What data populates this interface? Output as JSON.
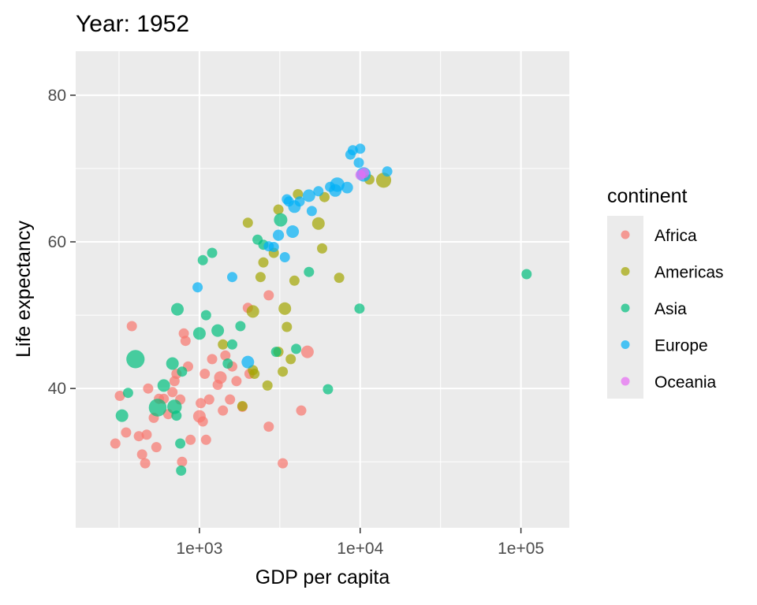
{
  "chart_data": {
    "type": "scatter",
    "title": "Year: 1952",
    "xlabel": "GDP per capita",
    "ylabel": "Life expectancy",
    "x_scale": "log10",
    "xlim": [
      170,
      200000
    ],
    "ylim": [
      21,
      86
    ],
    "x_ticks": [
      1000,
      10000,
      100000
    ],
    "x_tick_labels": [
      "1e+03",
      "1e+04",
      "1e+05"
    ],
    "y_ticks": [
      40,
      60,
      80
    ],
    "y_tick_labels": [
      "40",
      "60",
      "80"
    ],
    "grid": true,
    "legend": {
      "title": "continent",
      "placement": "right",
      "entries": [
        "Africa",
        "Americas",
        "Asia",
        "Europe",
        "Oceania"
      ]
    },
    "colors": {
      "Africa": "#F8766D",
      "Americas": "#A3A500",
      "Asia": "#00BF7D",
      "Europe": "#00B0F6",
      "Oceania": "#E76BF3"
    },
    "point_alpha": 0.7,
    "series": [
      {
        "name": "Africa",
        "points": [
          [
            300,
            32.5,
            1
          ],
          [
            320,
            39,
            1
          ],
          [
            350,
            34,
            1
          ],
          [
            380,
            48.5,
            1
          ],
          [
            420,
            33.5,
            1
          ],
          [
            440,
            31,
            1
          ],
          [
            460,
            29.8,
            1
          ],
          [
            470,
            33.7,
            1
          ],
          [
            480,
            40,
            1
          ],
          [
            520,
            36,
            1
          ],
          [
            540,
            32,
            1
          ],
          [
            560,
            38.6,
            1
          ],
          [
            600,
            38.6,
            1
          ],
          [
            640,
            36.5,
            1
          ],
          [
            680,
            39.5,
            1
          ],
          [
            700,
            41,
            1
          ],
          [
            720,
            42,
            1
          ],
          [
            760,
            38.5,
            1
          ],
          [
            780,
            30,
            1
          ],
          [
            800,
            47.5,
            1
          ],
          [
            820,
            46.5,
            1
          ],
          [
            850,
            43,
            1
          ],
          [
            880,
            33,
            1
          ],
          [
            1000,
            36.2,
            1.5
          ],
          [
            1020,
            38,
            1
          ],
          [
            1050,
            35.5,
            1
          ],
          [
            1080,
            42,
            1
          ],
          [
            1100,
            33,
            1
          ],
          [
            1150,
            38.5,
            1
          ],
          [
            1200,
            44,
            1
          ],
          [
            1300,
            40.5,
            1
          ],
          [
            1350,
            41.5,
            1.5
          ],
          [
            1400,
            37,
            1
          ],
          [
            1450,
            44.5,
            1
          ],
          [
            1550,
            38.5,
            1
          ],
          [
            1600,
            43,
            1
          ],
          [
            1700,
            41,
            1
          ],
          [
            1850,
            37.5,
            1
          ],
          [
            2000,
            51,
            1
          ],
          [
            2050,
            42,
            1
          ],
          [
            2700,
            34.8,
            1
          ],
          [
            2700,
            52.7,
            1
          ],
          [
            3300,
            29.8,
            1
          ],
          [
            4300,
            37,
            1
          ],
          [
            4700,
            45,
            1.5
          ]
        ]
      },
      {
        "name": "Americas",
        "points": [
          [
            1400,
            46,
            1
          ],
          [
            1850,
            37.6,
            1
          ],
          [
            2000,
            62.6,
            1
          ],
          [
            2150,
            42.5,
            1
          ],
          [
            2150,
            50.5,
            1.5
          ],
          [
            2200,
            42,
            1
          ],
          [
            2400,
            55.2,
            1
          ],
          [
            2500,
            57.2,
            1
          ],
          [
            2650,
            40.4,
            1
          ],
          [
            2900,
            58.5,
            1
          ],
          [
            3100,
            64.4,
            1
          ],
          [
            3100,
            45,
            1
          ],
          [
            3300,
            42.3,
            1
          ],
          [
            3400,
            50.9,
            1.5
          ],
          [
            3500,
            48.4,
            1
          ],
          [
            3700,
            44,
            1
          ],
          [
            3900,
            54.7,
            1
          ],
          [
            4100,
            66.5,
            1
          ],
          [
            5500,
            62.5,
            1.5
          ],
          [
            5800,
            59.1,
            1
          ],
          [
            6000,
            66.1,
            1
          ],
          [
            7400,
            55.1,
            1
          ],
          [
            11400,
            68.5,
            1
          ],
          [
            13990,
            68.4,
            2.2
          ]
        ]
      },
      {
        "name": "Asia",
        "points": [
          [
            330,
            36.3,
            1.5
          ],
          [
            360,
            39.4,
            1
          ],
          [
            400,
            44,
            3.2
          ],
          [
            550,
            37.4,
            3
          ],
          [
            600,
            40.4,
            1.5
          ],
          [
            680,
            43.4,
            1.5
          ],
          [
            700,
            37.5,
            2
          ],
          [
            720,
            36.3,
            1
          ],
          [
            730,
            50.8,
            1.5
          ],
          [
            760,
            32.5,
            1
          ],
          [
            770,
            28.8,
            1
          ],
          [
            780,
            42.3,
            1
          ],
          [
            1000,
            47.5,
            1.5
          ],
          [
            1050,
            57.5,
            1
          ],
          [
            1100,
            50,
            1
          ],
          [
            1200,
            58.5,
            1
          ],
          [
            1300,
            47.9,
            1.5
          ],
          [
            1500,
            43.4,
            1
          ],
          [
            1600,
            46,
            1
          ],
          [
            1800,
            48.5,
            1
          ],
          [
            2300,
            60.3,
            1
          ],
          [
            2500,
            59.6,
            1
          ],
          [
            3000,
            45,
            1
          ],
          [
            3200,
            63,
            1.7
          ],
          [
            4000,
            45.4,
            1
          ],
          [
            4800,
            55.9,
            1
          ],
          [
            6300,
            39.9,
            1
          ],
          [
            9900,
            50.9,
            1
          ],
          [
            108382,
            55.6,
            1
          ]
        ]
      },
      {
        "name": "Europe",
        "points": [
          [
            975,
            53.8,
            1
          ],
          [
            1600,
            55.2,
            1
          ],
          [
            2000,
            43.6,
            1.5
          ],
          [
            2700,
            59.4,
            1
          ],
          [
            2900,
            59.3,
            1
          ],
          [
            3100,
            60.9,
            1.2
          ],
          [
            3400,
            57.9,
            1
          ],
          [
            3500,
            65.8,
            1
          ],
          [
            3600,
            65.5,
            1
          ],
          [
            3800,
            61.4,
            1.5
          ],
          [
            3900,
            64.8,
            1.5
          ],
          [
            4200,
            65.5,
            1
          ],
          [
            4800,
            66.3,
            1.5
          ],
          [
            5000,
            64.2,
            1
          ],
          [
            5500,
            66.9,
            1
          ],
          [
            6500,
            67.5,
            1
          ],
          [
            7000,
            67,
            1.5
          ],
          [
            7200,
            67.8,
            2
          ],
          [
            8300,
            67.4,
            1.3
          ],
          [
            8700,
            71.9,
            1
          ],
          [
            9000,
            72.5,
            1
          ],
          [
            9800,
            70.8,
            1
          ],
          [
            10000,
            72.7,
            1
          ],
          [
            10500,
            69.2,
            2
          ],
          [
            14734,
            69.6,
            1
          ]
        ]
      },
      {
        "name": "Oceania",
        "points": [
          [
            10040,
            69.12,
            1
          ],
          [
            10557,
            69.39,
            1
          ]
        ]
      }
    ]
  }
}
